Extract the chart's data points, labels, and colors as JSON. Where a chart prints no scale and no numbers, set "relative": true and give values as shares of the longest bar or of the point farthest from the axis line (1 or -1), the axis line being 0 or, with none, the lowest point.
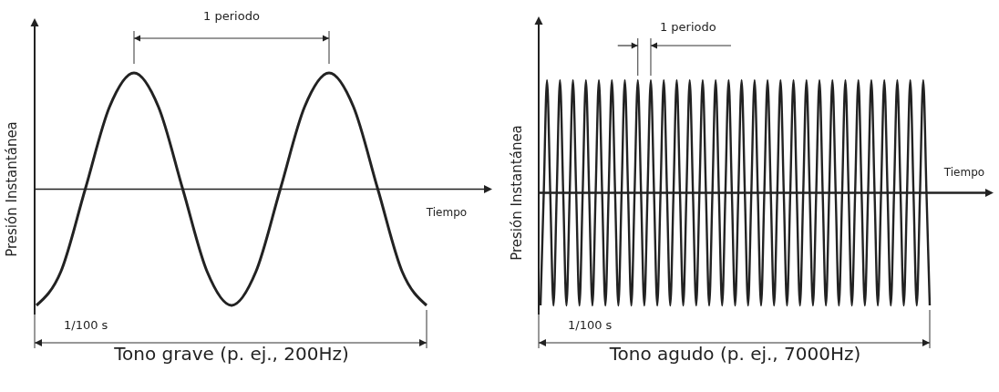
{
  "chart_data": [
    {
      "type": "line",
      "title": "Tono grave (p. ej., 200Hz)",
      "xlabel": "Tiempo",
      "ylabel": "Presión Instantánea",
      "relative": true,
      "annotations": [
        "1 periodo",
        "1/100 s"
      ],
      "categories": [
        null,
        null,
        null,
        null,
        null,
        null,
        null,
        null,
        null,
        null,
        null,
        null,
        null,
        null,
        null,
        null,
        null
      ],
      "series": [
        {
          "color": "#222222",
          "values": [
            -1,
            -0.71,
            0,
            0.71,
            1,
            0.71,
            0,
            -0.71,
            -1,
            -0.71,
            0,
            0.71,
            1,
            0.71,
            0,
            -0.71,
            -1
          ]
        }
      ]
    },
    {
      "type": "line",
      "title": "Tono agudo (p. ej., 7000Hz)",
      "xlabel": "Tiempo",
      "ylabel": "Presión Instantánea",
      "relative": true,
      "annotations": [
        "1 periodo",
        "1/100 s"
      ],
      "categories": [
        null,
        null,
        null,
        null,
        null,
        null,
        null,
        null,
        null,
        null,
        null,
        null,
        null,
        null,
        null,
        null,
        null,
        null,
        null,
        null,
        null,
        null,
        null,
        null,
        null,
        null,
        null,
        null,
        null,
        null,
        null,
        null,
        null,
        null,
        null,
        null,
        null,
        null,
        null,
        null,
        null,
        null,
        null,
        null,
        null,
        null,
        null,
        null,
        null,
        null,
        null,
        null,
        null,
        null,
        null,
        null,
        null,
        null,
        null,
        null,
        null,
        null,
        null,
        null,
        null,
        null,
        null,
        null,
        null,
        null,
        null,
        null,
        null,
        null,
        null,
        null,
        null,
        null,
        null,
        null,
        null,
        null,
        null,
        null,
        null,
        null,
        null,
        null,
        null,
        null,
        null,
        null,
        null,
        null,
        null,
        null,
        null,
        null,
        null,
        null,
        null,
        null,
        null,
        null,
        null,
        null,
        null,
        null,
        null,
        null,
        null,
        null,
        null,
        null,
        null,
        null,
        null,
        null,
        null,
        null,
        null
      ],
      "series": [
        {
          "color": "#222222",
          "values": [
            -1,
            0,
            1,
            0,
            -1,
            0,
            1,
            0,
            -1,
            0,
            1,
            0,
            -1,
            0,
            1,
            0,
            -1,
            0,
            1,
            0,
            -1,
            0,
            1,
            0,
            -1,
            0,
            1,
            0,
            -1,
            0,
            1,
            0,
            -1,
            0,
            1,
            0,
            -1,
            0,
            1,
            0,
            -1,
            0,
            1,
            0,
            -1,
            0,
            1,
            0,
            -1,
            0,
            1,
            0,
            -1,
            0,
            1,
            0,
            -1,
            0,
            1,
            0,
            -1,
            0,
            1,
            0,
            -1,
            0,
            1,
            0,
            -1,
            0,
            1,
            0,
            -1,
            0,
            1,
            0,
            -1,
            0,
            1,
            0,
            -1,
            0,
            1,
            0,
            -1,
            0,
            1,
            0,
            -1,
            0,
            1,
            0,
            -1,
            0,
            1,
            0,
            -1,
            0,
            1,
            0,
            -1,
            0,
            1,
            0,
            -1,
            0,
            1,
            0,
            -1,
            0,
            1,
            0,
            -1,
            0,
            1,
            0,
            -1,
            0,
            1,
            0,
            -1
          ]
        }
      ]
    }
  ]
}
